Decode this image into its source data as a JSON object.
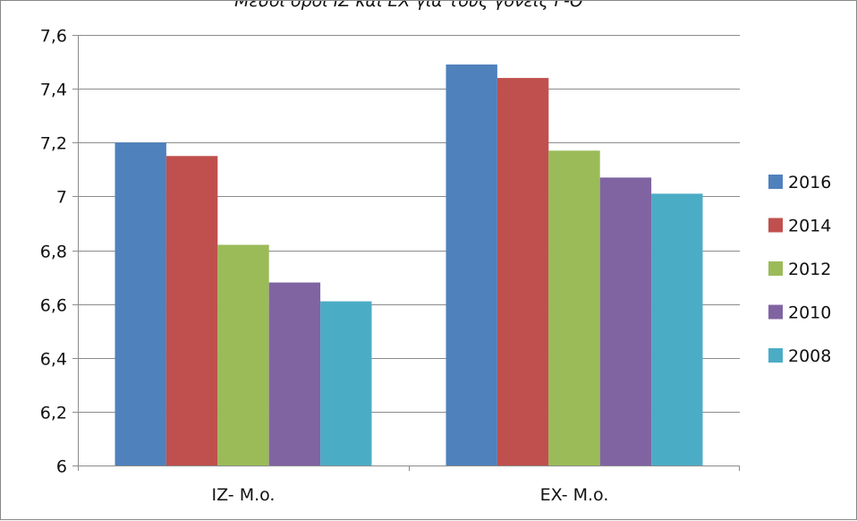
{
  "chart_data": {
    "type": "bar",
    "title": "Μέσοι όροι ΙΖ και ΕΧ για τους γονείς Γ-Θ",
    "categories": [
      "IZ- M.o.",
      "EX- M.o."
    ],
    "series": [
      {
        "name": "2016",
        "color": "#4F81BD",
        "values": [
          7.2,
          7.49
        ]
      },
      {
        "name": "2014",
        "color": "#C0504D",
        "values": [
          7.15,
          7.44
        ]
      },
      {
        "name": "2012",
        "color": "#9BBB59",
        "values": [
          6.82,
          7.17
        ]
      },
      {
        "name": "2010",
        "color": "#8064A2",
        "values": [
          6.68,
          7.07
        ]
      },
      {
        "name": "2008",
        "color": "#4BACC6",
        "values": [
          6.61,
          7.01
        ]
      }
    ],
    "ylim": [
      6,
      7.6
    ],
    "yticks": [
      6,
      6.2,
      6.4,
      6.6,
      6.8,
      7,
      7.2,
      7.4,
      7.6
    ],
    "ytick_labels": [
      "6",
      "6,2",
      "6,4",
      "6,6",
      "6,8",
      "7",
      "7,2",
      "7,4",
      "7,6"
    ],
    "grid": true,
    "legend_position": "right"
  }
}
